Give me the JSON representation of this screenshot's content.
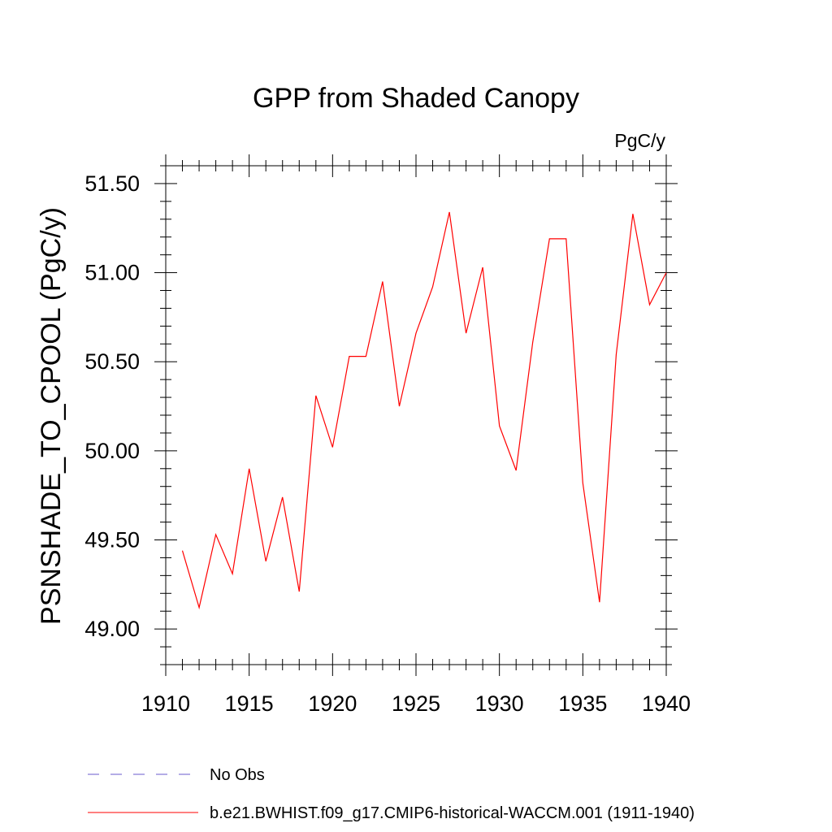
{
  "chart_data": {
    "type": "line",
    "title": "GPP from Shaded Canopy",
    "units_label": "PgC/y",
    "ylabel": "PSNSHADE_TO_CPOOL  (PgC/y)",
    "xlabel": "",
    "xlim": [
      1910,
      1940
    ],
    "ylim": [
      48.8,
      51.6
    ],
    "x_ticks": [
      "1910",
      "1915",
      "1920",
      "1925",
      "1930",
      "1935",
      "1940"
    ],
    "y_ticks": [
      "49.00",
      "49.50",
      "50.00",
      "50.50",
      "51.00",
      "51.50"
    ],
    "grid": false,
    "legend_position": "bottom-left",
    "series": [
      {
        "name": "b.e21.BWHIST.f09_g17.CMIP6-historical-WACCM.001 (1911-1940)",
        "color": "#ff0000",
        "dash": "solid",
        "x": [
          1911,
          1912,
          1913,
          1914,
          1915,
          1916,
          1917,
          1918,
          1919,
          1920,
          1921,
          1922,
          1923,
          1924,
          1925,
          1926,
          1927,
          1928,
          1929,
          1930,
          1931,
          1932,
          1933,
          1934,
          1935,
          1936,
          1937,
          1938,
          1939,
          1940
        ],
        "values": [
          49.44,
          49.12,
          49.53,
          49.31,
          49.9,
          49.38,
          49.74,
          49.21,
          50.31,
          50.02,
          50.53,
          50.53,
          50.95,
          50.25,
          50.66,
          50.92,
          51.34,
          50.66,
          51.03,
          50.14,
          49.89,
          50.61,
          51.19,
          51.19,
          49.82,
          49.15,
          50.54,
          51.33,
          50.82,
          51.0
        ]
      },
      {
        "name": "No Obs",
        "color": "#6a5acd",
        "dash": "dashed",
        "x": [],
        "values": []
      }
    ]
  }
}
